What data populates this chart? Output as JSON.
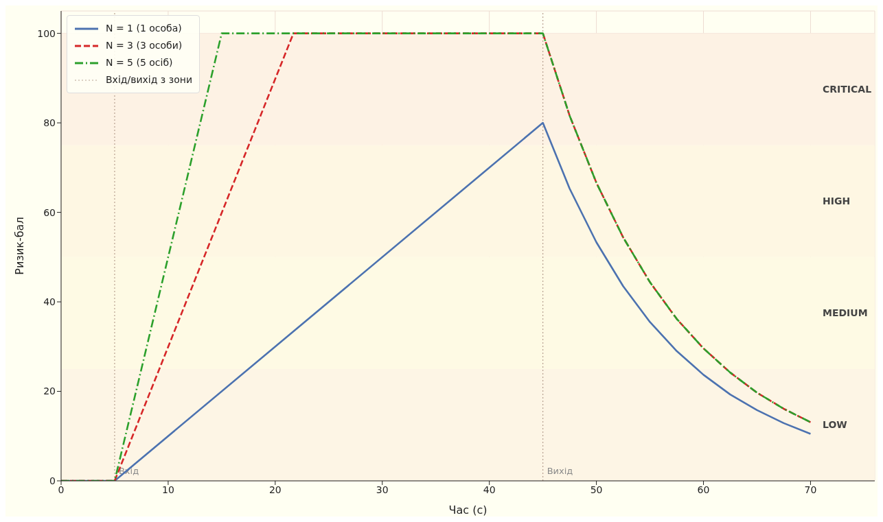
{
  "chart_data": {
    "type": "line",
    "xlabel": "Час (с)",
    "ylabel": "Ризик-бал",
    "xlim": [
      0,
      76
    ],
    "ylim": [
      0,
      105
    ],
    "xticks": [
      0,
      10,
      20,
      30,
      40,
      50,
      60,
      70
    ],
    "yticks": [
      0,
      20,
      40,
      60,
      80,
      100
    ],
    "grid": true,
    "legend": "top left",
    "marker": "none",
    "series": [
      {
        "name": "N = 1 (1 особа)",
        "color": "#4c72b0",
        "line_style": "solid",
        "x": [
          0,
          5,
          45,
          47.5,
          50,
          52.5,
          55,
          57.5,
          60,
          62.5,
          65,
          67.5,
          70
        ],
        "values": [
          0,
          0,
          80,
          65.3,
          53.3,
          43.5,
          35.5,
          29,
          23.7,
          19.3,
          15.8,
          12.9,
          10.5
        ]
      },
      {
        "name": "N = 3 (3 особи)",
        "color": "#d62728",
        "line_style": "dashed",
        "x": [
          0,
          5,
          21.7,
          45,
          47.5,
          50,
          52.5,
          55,
          57.5,
          60,
          62.5,
          65,
          67.5,
          70
        ],
        "values": [
          0,
          0,
          100,
          100,
          81.6,
          66.6,
          54.4,
          44.4,
          36.2,
          29.6,
          24.2,
          19.7,
          16.1,
          13.1
        ]
      },
      {
        "name": "N = 5 (5 осіб)",
        "color": "#2ca02c",
        "line_style": "dashdot",
        "x": [
          0,
          5,
          15,
          45,
          47.5,
          50,
          52.5,
          55,
          57.5,
          60,
          62.5,
          65,
          67.5,
          70
        ],
        "values": [
          0,
          0,
          100,
          100,
          81.6,
          66.6,
          54.4,
          44.4,
          36.2,
          29.6,
          24.2,
          19.7,
          16.1,
          13.1
        ]
      }
    ],
    "ref_lines": [
      {
        "axis": "x",
        "value": 5,
        "label": "Вхід",
        "color": "#b8a090",
        "line_style": "dotted"
      },
      {
        "axis": "x",
        "value": 45,
        "label": "Вихід",
        "color": "#b8a090",
        "line_style": "dotted"
      }
    ],
    "bands": [
      {
        "axis": "y",
        "from": 75,
        "to": 100,
        "label": "CRITICAL",
        "color": "#fdf2e4"
      },
      {
        "axis": "y",
        "from": 50,
        "to": 75,
        "label": "HIGH",
        "color": "#fef7e3"
      },
      {
        "axis": "y",
        "from": 25,
        "to": 50,
        "label": "MEDIUM",
        "color": "#fefae4"
      },
      {
        "axis": "y",
        "from": 0,
        "to": 25,
        "label": "LOW",
        "color": "#fdf5e5"
      }
    ],
    "annotations": [
      "Вхід/вихід з зони"
    ]
  }
}
